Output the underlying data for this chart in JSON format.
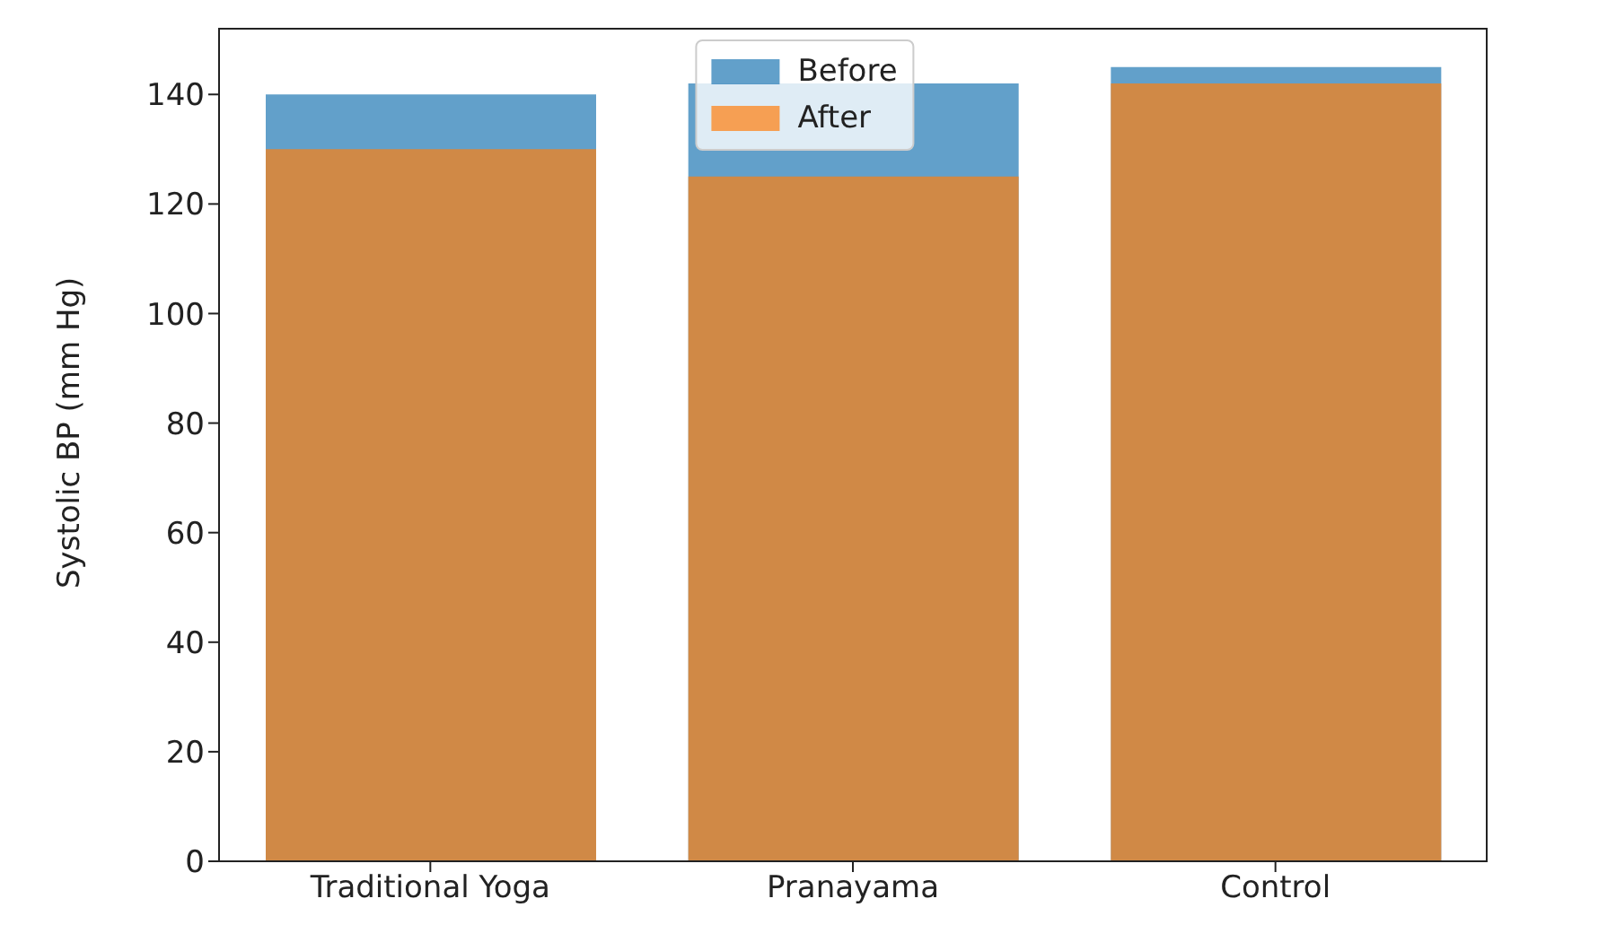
{
  "chart_data": {
    "type": "bar",
    "ylabel": "Systolic BP (mm Hg)",
    "categories": [
      "Traditional Yoga",
      "Pranayama",
      "Control"
    ],
    "series": [
      {
        "name": "Before",
        "color": "#1f77b4",
        "values": [
          140,
          142,
          145
        ]
      },
      {
        "name": "After",
        "color": "#ff7f0e",
        "values": [
          130,
          125,
          142
        ]
      }
    ],
    "ylim": [
      0,
      152
    ],
    "yticks": [
      0,
      20,
      40,
      60,
      80,
      100,
      120,
      140
    ],
    "grid": false,
    "legend": "top"
  }
}
